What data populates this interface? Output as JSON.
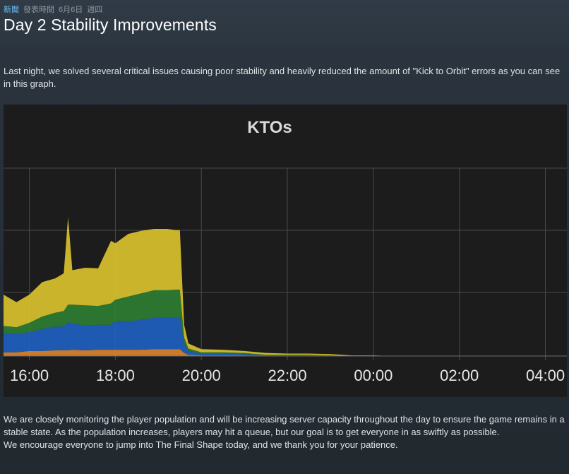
{
  "header": {
    "category": "新聞",
    "posted_label": "發表時間",
    "date": "6月6日",
    "weekday": "週四",
    "title": "Day 2 Stability Improvements"
  },
  "body": {
    "intro": "Last night, we solved several critical issues causing poor stability and heavily reduced the amount of \"Kick to Orbit\" errors as you can see in this graph.",
    "monitoring": "We are closely monitoring the player population and will be increasing server capacity throughout the day to ensure the game remains in a stable state. As the population increases, players may hit a queue, but our goal is to get everyone in as swiftly as possible.",
    "closing": "We encourage everyone to jump into The Final Shape today, and we thank you for your patience."
  },
  "colors": {
    "page_bg": "#1b2838",
    "chart_bg": "#1c1c1d",
    "yellow": "#d9c12c",
    "green": "#2e7d32",
    "blue": "#1f5fbf",
    "orange": "#d9822b",
    "grid": "#4a4a4a",
    "tick_text": "#e6e6e6"
  },
  "chart_data": {
    "type": "area",
    "title": "KTOs",
    "x_tick_labels": [
      "16:00",
      "18:00",
      "20:00",
      "22:00",
      "00:00",
      "02:00",
      "04:00"
    ],
    "x_tick_hours": [
      16,
      18,
      20,
      22,
      24,
      26,
      28
    ],
    "xlim": [
      15.4,
      28.5
    ],
    "ylim": [
      0,
      300
    ],
    "grid": true,
    "stacked": true,
    "series_colors": [
      "#d9822b",
      "#1f5fbf",
      "#2e7d32",
      "#d9c12c"
    ],
    "x": [
      15.4,
      15.7,
      16.0,
      16.3,
      16.6,
      16.8,
      16.9,
      17.0,
      17.3,
      17.6,
      17.9,
      18.0,
      18.3,
      18.6,
      18.9,
      19.2,
      19.4,
      19.5,
      19.6,
      19.7,
      20.0,
      20.5,
      21.0,
      21.5,
      22.0,
      22.5,
      23.0,
      23.5,
      24.0,
      24.5,
      25.0
    ],
    "series": [
      {
        "values": [
          6,
          6,
          8,
          8,
          9,
          9,
          9,
          10,
          9,
          10,
          10,
          10,
          10,
          10,
          11,
          11,
          11,
          11,
          5,
          2,
          1,
          1,
          1,
          0,
          0,
          0,
          0,
          0,
          0,
          0,
          0
        ]
      },
      {
        "values": [
          30,
          30,
          30,
          35,
          38,
          38,
          45,
          42,
          40,
          40,
          40,
          45,
          45,
          48,
          50,
          50,
          50,
          50,
          15,
          6,
          3,
          3,
          2,
          1,
          1,
          1,
          0,
          0,
          0,
          0,
          0
        ]
      },
      {
        "values": [
          12,
          10,
          15,
          20,
          22,
          25,
          28,
          30,
          32,
          30,
          34,
          35,
          40,
          42,
          44,
          44,
          45,
          45,
          10,
          4,
          2,
          2,
          2,
          1,
          1,
          1,
          1,
          0,
          0,
          0,
          0
        ]
      },
      {
        "values": [
          50,
          40,
          45,
          55,
          55,
          60,
          140,
          55,
          60,
          60,
          100,
          90,
          100,
          100,
          98,
          98,
          95,
          95,
          20,
          8,
          5,
          4,
          3,
          3,
          2,
          2,
          2,
          1,
          1,
          0,
          0
        ]
      }
    ]
  }
}
